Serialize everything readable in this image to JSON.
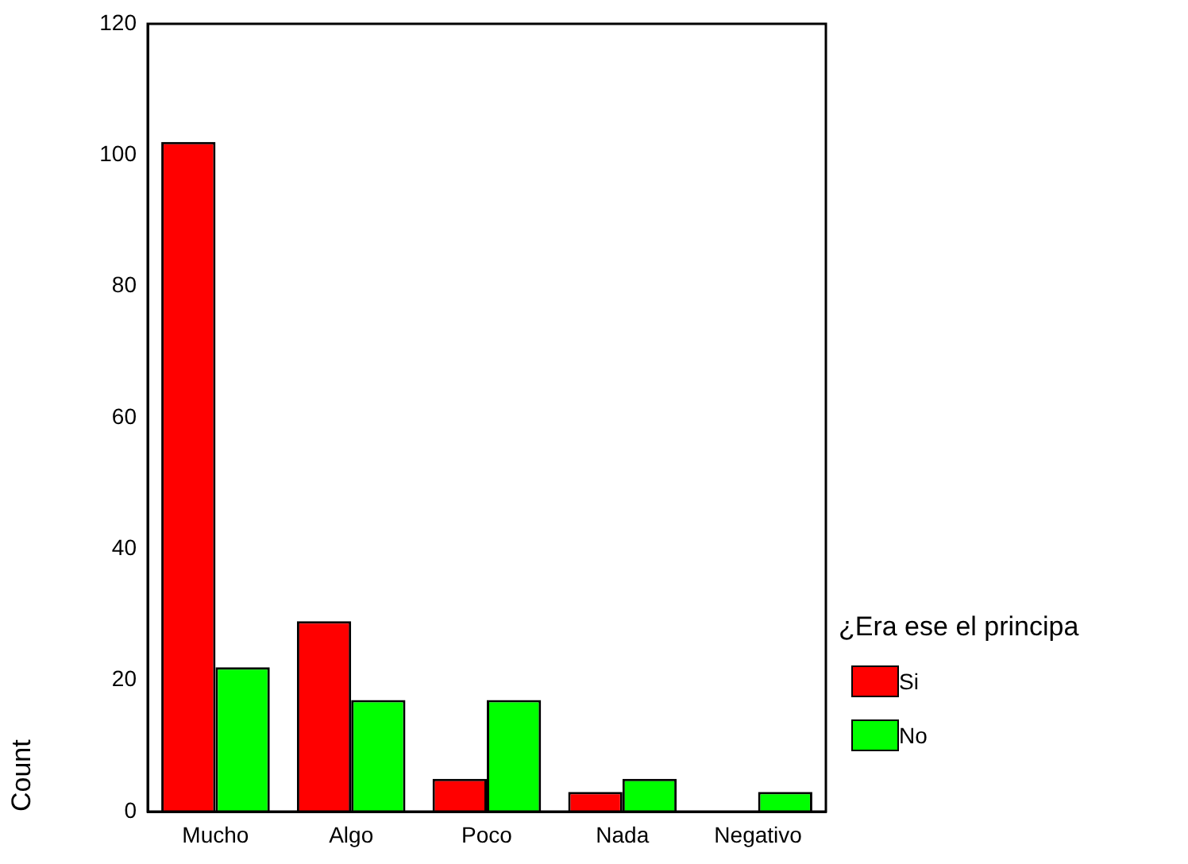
{
  "chart_data": {
    "type": "bar",
    "ylabel": "Count",
    "legend_title": "¿Era ese el principa",
    "categories": [
      "Mucho",
      "Algo",
      "Poco",
      "Nada",
      "Negativo"
    ],
    "series": [
      {
        "name": "Si",
        "color": "#ff0000",
        "values": [
          102,
          29,
          5,
          3,
          0
        ]
      },
      {
        "name": "No",
        "color": "#00ff00",
        "values": [
          22,
          17,
          17,
          5,
          3
        ]
      }
    ],
    "ylim": [
      0,
      120
    ],
    "yticks": [
      0,
      20,
      40,
      60,
      80,
      100,
      120
    ],
    "grid": false,
    "legend": "right"
  }
}
